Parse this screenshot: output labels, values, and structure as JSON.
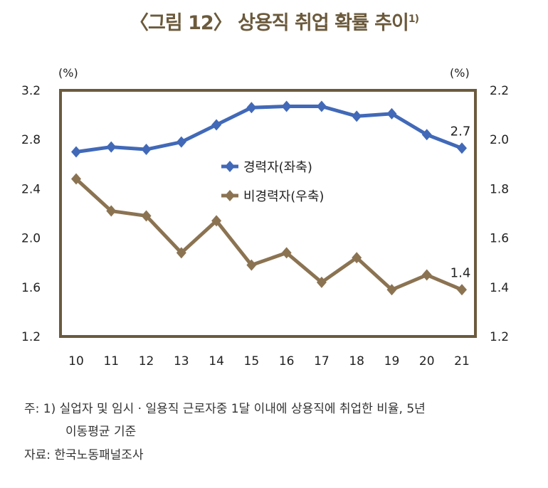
{
  "title": "〈그림 12〉 상용직 취업 확률 추이",
  "title_sup": "1)",
  "chart_data": {
    "type": "line",
    "title": "〈그림 12〉 상용직 취업 확률 추이",
    "x": [
      "10",
      "11",
      "12",
      "13",
      "14",
      "15",
      "16",
      "17",
      "18",
      "19",
      "20",
      "21"
    ],
    "left_axis": {
      "unit": "(%)",
      "ylim": [
        1.2,
        3.2
      ],
      "ticks": [
        "3.2",
        "2.8",
        "2.4",
        "2.0",
        "1.6",
        "1.2"
      ],
      "tick_values": [
        3.2,
        2.8,
        2.4,
        2.0,
        1.6,
        1.2
      ]
    },
    "right_axis": {
      "unit": "(%)",
      "ylim": [
        1.2,
        2.2
      ],
      "ticks": [
        "2.2",
        "2.0",
        "1.8",
        "1.6",
        "1.4",
        "1.2"
      ],
      "tick_values": [
        2.2,
        2.0,
        1.8,
        1.6,
        1.4,
        1.2
      ]
    },
    "series": [
      {
        "name": "경력자(좌축)",
        "axis": "left",
        "color": "#4169b8",
        "values": [
          2.7,
          2.74,
          2.72,
          2.78,
          2.92,
          3.06,
          3.07,
          3.07,
          2.99,
          3.01,
          2.84,
          2.73
        ],
        "end_label": "2.7"
      },
      {
        "name": "비경력자(우축)",
        "axis": "right",
        "color": "#8b7352",
        "values": [
          1.84,
          1.71,
          1.69,
          1.54,
          1.67,
          1.49,
          1.54,
          1.42,
          1.52,
          1.39,
          1.45,
          1.39
        ],
        "end_label": "1.4"
      }
    ],
    "legend_position": "center",
    "frame_color": "#6b5a3c"
  },
  "notes": {
    "note1_line1": "주:  1) 실업자 및 임시 · 일용직 근로자중 1달 이내에 상용직에 취업한 비율,  5년",
    "note1_line2": "이동평균 기준",
    "source": "자료:  한국노동패널조사"
  }
}
